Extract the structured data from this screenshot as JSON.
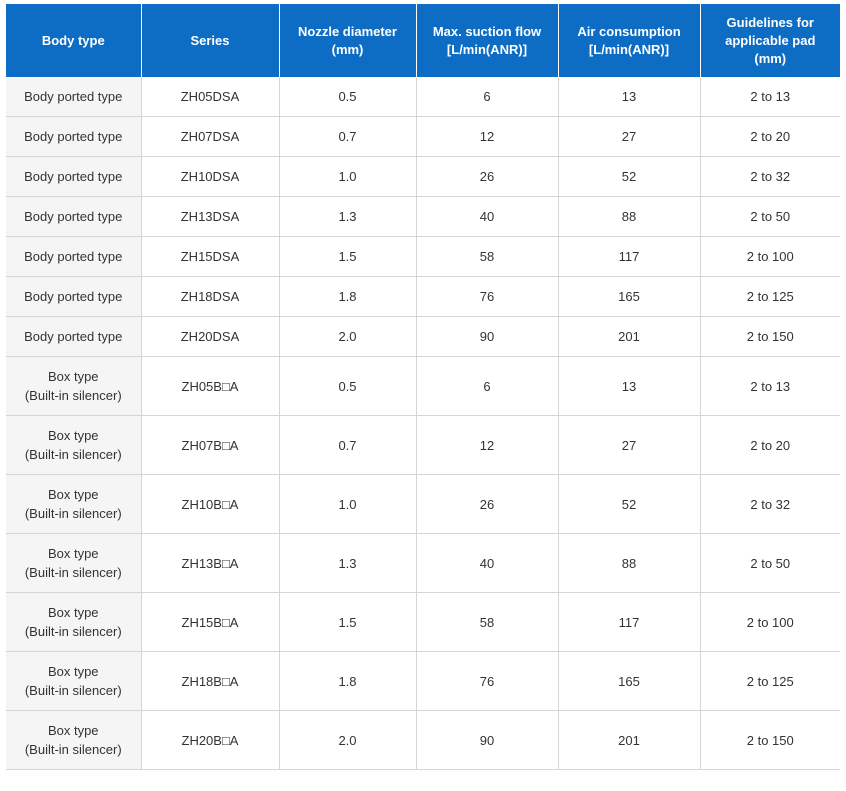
{
  "headers": [
    [
      "Body type"
    ],
    [
      "Series"
    ],
    [
      "Nozzle diameter",
      "(mm)"
    ],
    [
      "Max. suction flow",
      "[L/min(ANR)]"
    ],
    [
      "Air consumption",
      "[L/min(ANR)]"
    ],
    [
      "Guidelines for",
      "applicable pad",
      "(mm)"
    ]
  ],
  "rows": [
    {
      "body": [
        "Body ported type"
      ],
      "series": "ZH05DSA",
      "nozzle": "0.5",
      "suction": "6",
      "air": "13",
      "pad": "2 to 13"
    },
    {
      "body": [
        "Body ported type"
      ],
      "series": "ZH07DSA",
      "nozzle": "0.7",
      "suction": "12",
      "air": "27",
      "pad": "2 to 20"
    },
    {
      "body": [
        "Body ported type"
      ],
      "series": "ZH10DSA",
      "nozzle": "1.0",
      "suction": "26",
      "air": "52",
      "pad": "2 to 32"
    },
    {
      "body": [
        "Body ported type"
      ],
      "series": "ZH13DSA",
      "nozzle": "1.3",
      "suction": "40",
      "air": "88",
      "pad": "2 to 50"
    },
    {
      "body": [
        "Body ported type"
      ],
      "series": "ZH15DSA",
      "nozzle": "1.5",
      "suction": "58",
      "air": "117",
      "pad": "2 to 100"
    },
    {
      "body": [
        "Body ported type"
      ],
      "series": "ZH18DSA",
      "nozzle": "1.8",
      "suction": "76",
      "air": "165",
      "pad": "2 to 125"
    },
    {
      "body": [
        "Body ported type"
      ],
      "series": "ZH20DSA",
      "nozzle": "2.0",
      "suction": "90",
      "air": "201",
      "pad": "2 to 150"
    },
    {
      "body": [
        "Box type",
        "(Built-in silencer)"
      ],
      "series": "ZH05B□A",
      "nozzle": "0.5",
      "suction": "6",
      "air": "13",
      "pad": "2 to 13"
    },
    {
      "body": [
        "Box type",
        "(Built-in silencer)"
      ],
      "series": "ZH07B□A",
      "nozzle": "0.7",
      "suction": "12",
      "air": "27",
      "pad": "2 to 20"
    },
    {
      "body": [
        "Box type",
        "(Built-in silencer)"
      ],
      "series": "ZH10B□A",
      "nozzle": "1.0",
      "suction": "26",
      "air": "52",
      "pad": "2 to 32"
    },
    {
      "body": [
        "Box type",
        "(Built-in silencer)"
      ],
      "series": "ZH13B□A",
      "nozzle": "1.3",
      "suction": "40",
      "air": "88",
      "pad": "2 to 50"
    },
    {
      "body": [
        "Box type",
        "(Built-in silencer)"
      ],
      "series": "ZH15B□A",
      "nozzle": "1.5",
      "suction": "58",
      "air": "117",
      "pad": "2 to 100"
    },
    {
      "body": [
        "Box type",
        "(Built-in silencer)"
      ],
      "series": "ZH18B□A",
      "nozzle": "1.8",
      "suction": "76",
      "air": "165",
      "pad": "2 to 125"
    },
    {
      "body": [
        "Box type",
        "(Built-in silencer)"
      ],
      "series": "ZH20B□A",
      "nozzle": "2.0",
      "suction": "90",
      "air": "201",
      "pad": "2 to 150"
    }
  ],
  "colors": {
    "header_bg": "#0d6cc4",
    "header_text": "#ffffff",
    "first_col_bg": "#f5f5f5",
    "border": "#d5d5d5"
  }
}
